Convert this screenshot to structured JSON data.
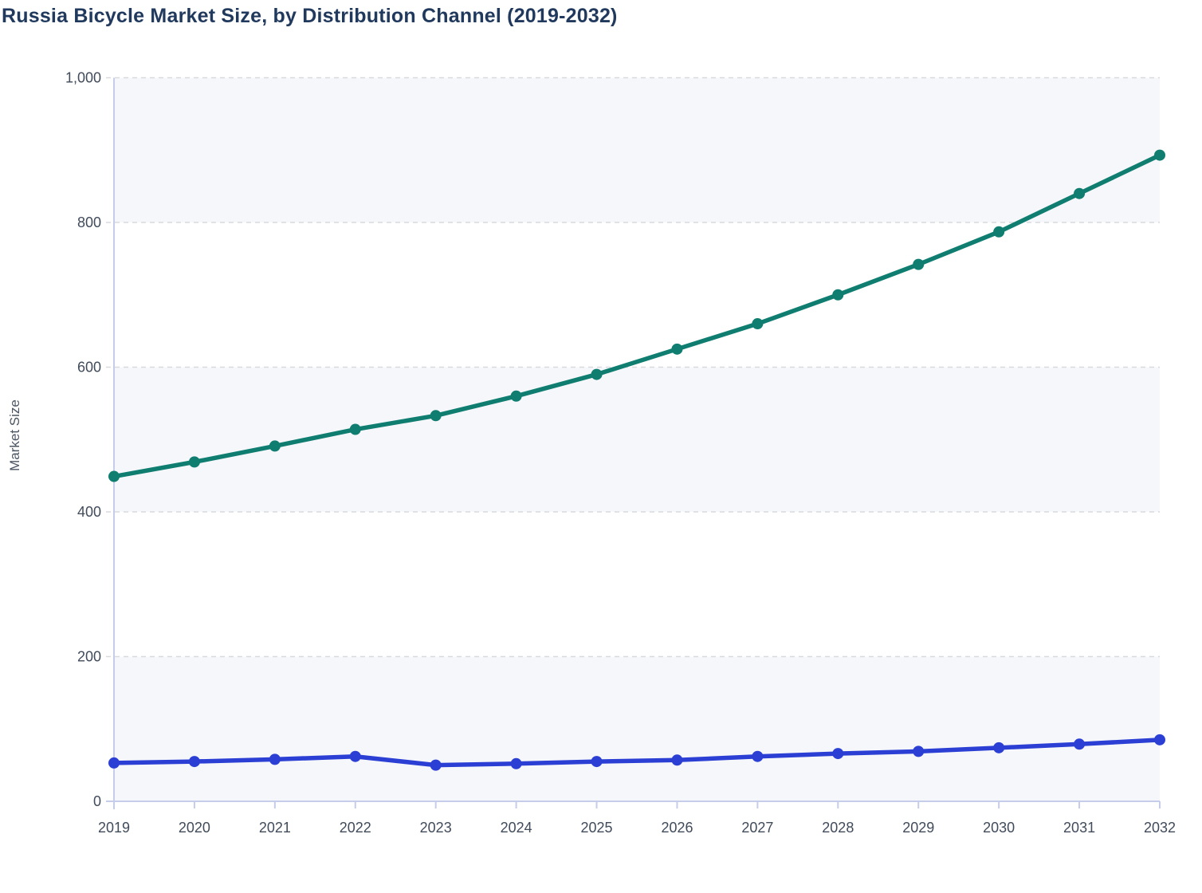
{
  "chart_data": {
    "type": "line",
    "title": "Russia Bicycle Market Size, by Distribution Channel (2019-2032)",
    "xlabel": "",
    "ylabel": "Market Size",
    "categories": [
      "2019",
      "2020",
      "2021",
      "2022",
      "2023",
      "2024",
      "2025",
      "2026",
      "2027",
      "2028",
      "2029",
      "2030",
      "2031",
      "2032"
    ],
    "series": [
      {
        "id": "series-teal",
        "color": "#0f7d70",
        "values": [
          449,
          469,
          491,
          514,
          533,
          560,
          590,
          625,
          660,
          700,
          742,
          787,
          840,
          893
        ]
      },
      {
        "id": "series-blue",
        "color": "#2b3fd4",
        "values": [
          53,
          55,
          58,
          62,
          50,
          52,
          55,
          57,
          62,
          66,
          69,
          74,
          79,
          85
        ]
      }
    ],
    "ylim": [
      0,
      1000
    ],
    "yticks": [
      0,
      200,
      400,
      600,
      800,
      1000
    ],
    "ytick_labels": [
      "0",
      "200",
      "400",
      "600",
      "800",
      "1,000"
    ],
    "grid": "horizontal-dashed",
    "legend": "none",
    "plot_band_color": "#f6f7fa",
    "axis_line_color": "#c6cdea",
    "gridline_color": "#d9dadd",
    "tick_label_color": "#414b5a",
    "title_color": "#20395c",
    "ylabel_color": "#4c5562"
  }
}
